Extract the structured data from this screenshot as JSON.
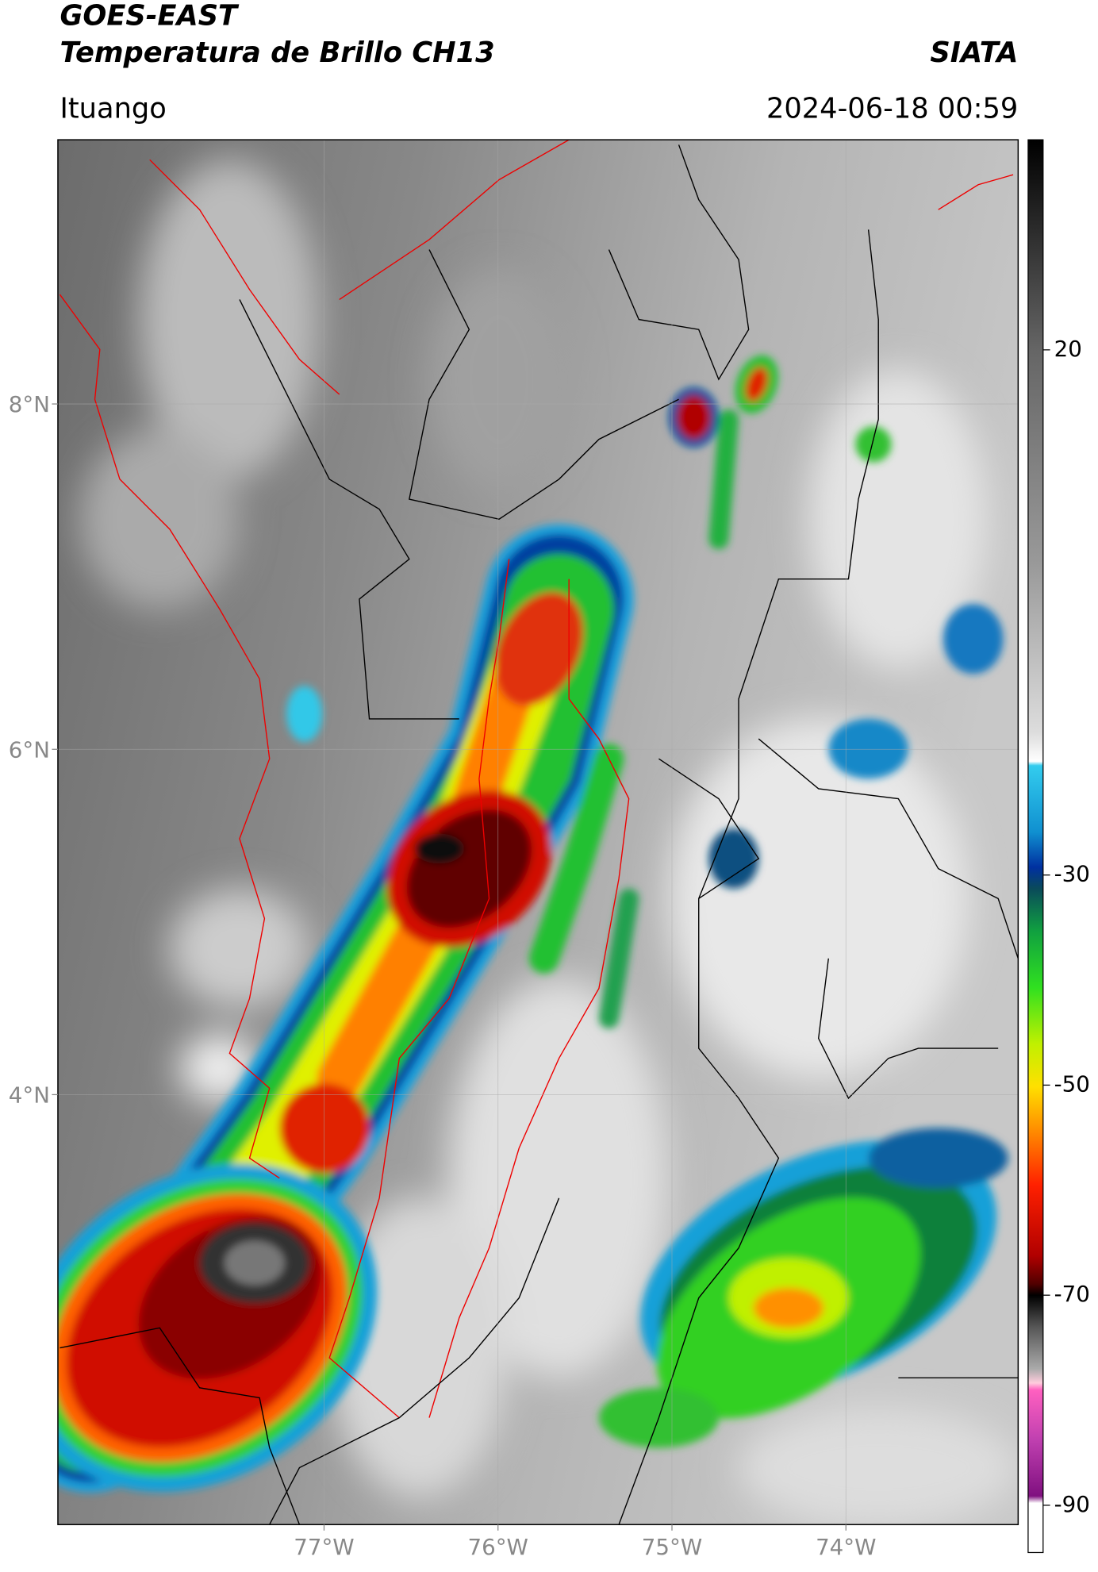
{
  "header": {
    "satellite": "GOES-EAST",
    "product": "Temperatura de Brillo CH13",
    "organization": "SIATA",
    "location": "Ituango",
    "datetime": "2024-06-18 00:59"
  },
  "map": {
    "xlim": [
      -78.53,
      -73.01
    ],
    "ylim": [
      1.51,
      9.53
    ],
    "xticks": [
      {
        "value": -77,
        "label": "77°W"
      },
      {
        "value": -76,
        "label": "76°W"
      },
      {
        "value": -75,
        "label": "75°W"
      },
      {
        "value": -74,
        "label": "74°W"
      }
    ],
    "yticks": [
      {
        "value": 4,
        "label": "4°N"
      },
      {
        "value": 6,
        "label": "6°N"
      },
      {
        "value": 8,
        "label": "8°N"
      }
    ],
    "grid": true
  },
  "colorbar": {
    "clim": [
      -94.5,
      40
    ],
    "ticks": [
      20,
      -30,
      -50,
      -70,
      -90
    ]
  }
}
